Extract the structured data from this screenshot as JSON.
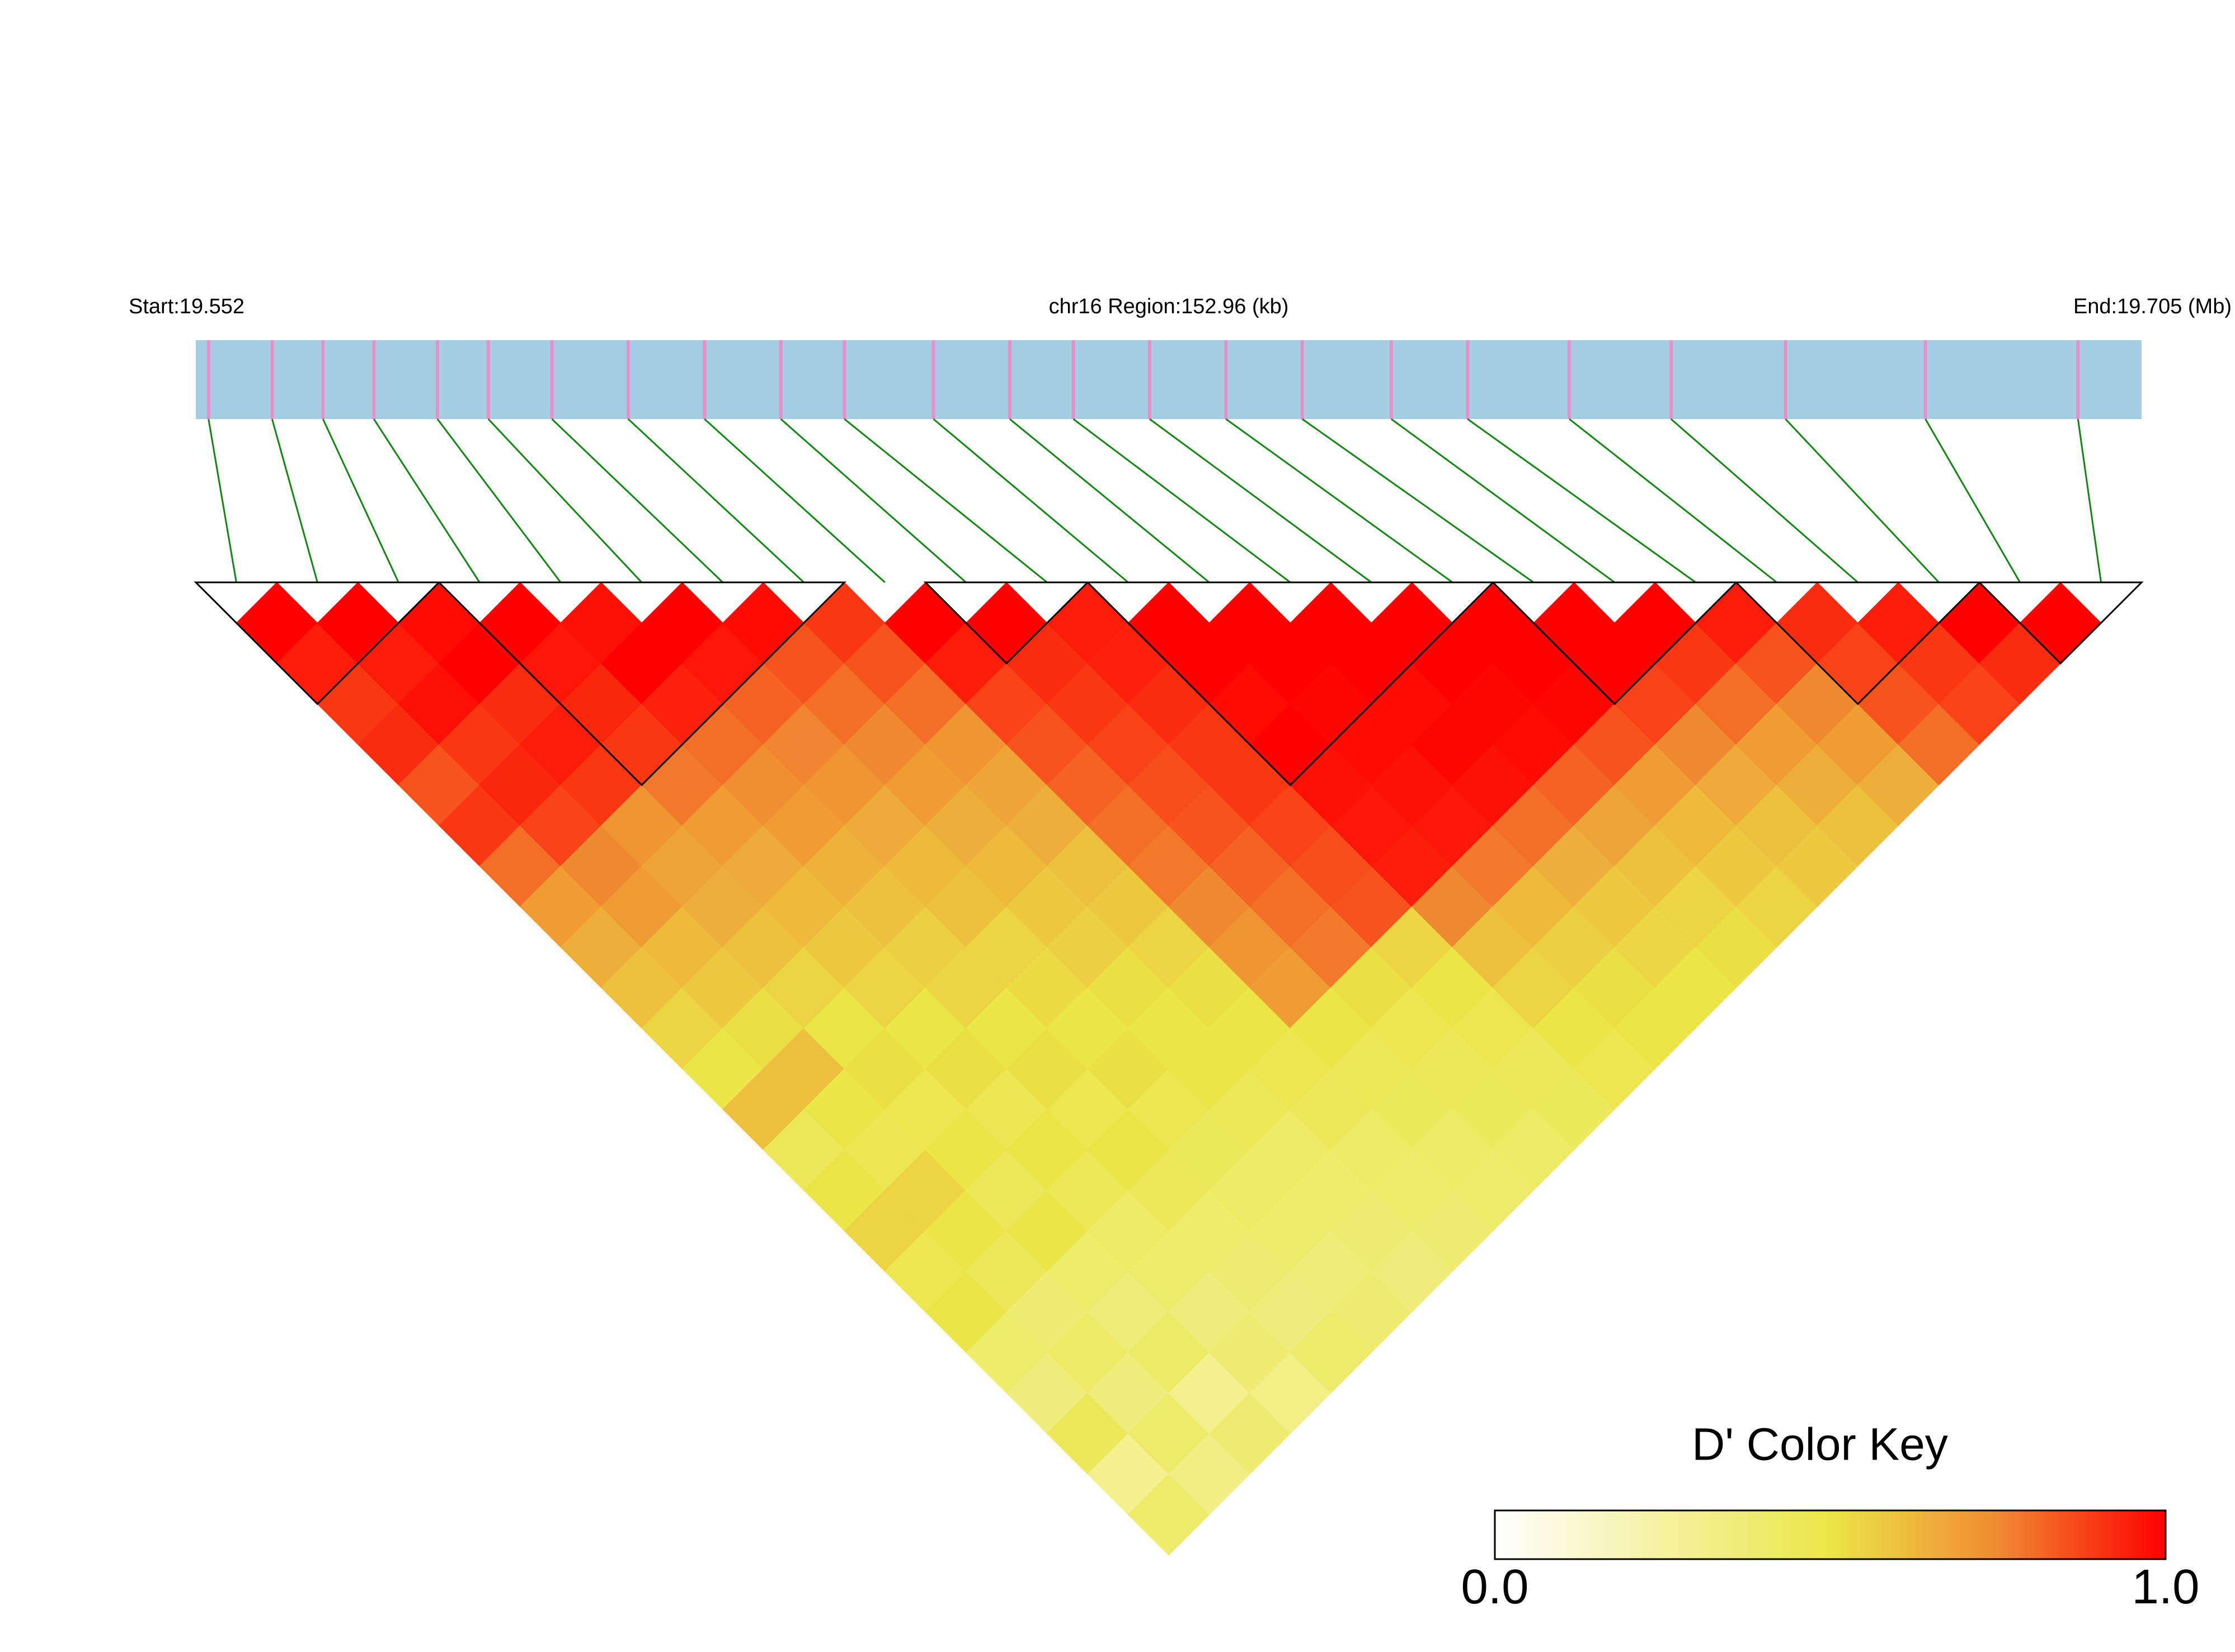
{
  "chart_data": {
    "type": "ld_heatmap",
    "start_label": "Start:19.552",
    "title": "chr16 Region:152.96 (kb)",
    "end_label": "End:19.705 (Mb)",
    "xlim": [
      19.552,
      19.705
    ],
    "positions": [
      19.553,
      19.558,
      19.562,
      19.566,
      19.571,
      19.575,
      19.58,
      19.586,
      19.592,
      19.598,
      19.603,
      19.61,
      19.616,
      19.621,
      19.627,
      19.633,
      19.639,
      19.646,
      19.652,
      19.66,
      19.668,
      19.677,
      19.688,
      19.7
    ],
    "dprime": [
      [
        1,
        0.95,
        0.9,
        0.92,
        0.85,
        0.9,
        0.8,
        0.7,
        0.65,
        0.6,
        0.55,
        0.5,
        0.6,
        0.45,
        0.5,
        0.55,
        0.48,
        0.5,
        0.4,
        0.35,
        0.45,
        0.3,
        0.4
      ],
      [
        1,
        0.95,
        0.97,
        0.9,
        0.93,
        0.88,
        0.75,
        0.7,
        0.62,
        0.58,
        0.52,
        0.6,
        0.5,
        0.47,
        0.55,
        0.5,
        0.45,
        0.38,
        0.42,
        0.35,
        0.4,
        0.33
      ],
      [
        0.98,
        1,
        0.92,
        0.95,
        0.9,
        0.72,
        0.68,
        0.65,
        0.6,
        0.55,
        0.5,
        0.52,
        0.48,
        0.5,
        0.45,
        0.5,
        0.4,
        0.36,
        0.42,
        0.3,
        0.38
      ],
      [
        1,
        0.96,
        0.93,
        0.9,
        0.78,
        0.7,
        0.66,
        0.62,
        0.58,
        0.55,
        0.5,
        0.52,
        0.47,
        0.5,
        0.46,
        0.42,
        0.4,
        0.35,
        0.38,
        0.32
      ],
      [
        0.97,
        1,
        0.94,
        0.8,
        0.74,
        0.7,
        0.64,
        0.6,
        0.56,
        0.55,
        0.5,
        0.52,
        0.48,
        0.5,
        0.45,
        0.4,
        0.38,
        0.35,
        0.4
      ],
      [
        1,
        0.96,
        0.82,
        0.76,
        0.72,
        0.66,
        0.62,
        0.6,
        0.55,
        0.53,
        0.5,
        0.52,
        0.48,
        0.44,
        0.42,
        0.4,
        0.36,
        0.38
      ],
      [
        0.98,
        0.85,
        0.8,
        0.75,
        0.7,
        0.65,
        0.62,
        0.58,
        0.56,
        0.52,
        0.5,
        0.5,
        0.46,
        0.42,
        0.4,
        0.38,
        0.35
      ],
      [
        0.9,
        0.85,
        0.8,
        0.72,
        0.68,
        0.65,
        0.6,
        0.58,
        0.55,
        0.52,
        0.5,
        0.48,
        0.45,
        0.42,
        0.4,
        0.38
      ],
      [
        1,
        0.95,
        0.88,
        0.85,
        0.82,
        0.8,
        0.78,
        0.75,
        0.72,
        0.7,
        0.5,
        0.46,
        0.44,
        0.42,
        0.4
      ],
      [
        1,
        0.92,
        0.9,
        0.88,
        0.86,
        0.85,
        0.82,
        0.8,
        0.78,
        0.52,
        0.48,
        0.45,
        0.44,
        0.42
      ],
      [
        0.95,
        0.94,
        0.92,
        0.9,
        0.9,
        0.88,
        0.86,
        0.85,
        0.55,
        0.5,
        0.48,
        0.45,
        0.44
      ],
      [
        1,
        1,
        0.98,
        1,
        0.97,
        0.96,
        0.95,
        0.75,
        0.6,
        0.55,
        0.5,
        0.48
      ],
      [
        1,
        1,
        0.99,
        0.98,
        0.97,
        0.96,
        0.78,
        0.62,
        0.56,
        0.52,
        0.5
      ],
      [
        1,
        1,
        0.98,
        0.99,
        0.97,
        0.8,
        0.65,
        0.58,
        0.54,
        0.5
      ],
      [
        1,
        1,
        0.99,
        0.98,
        0.82,
        0.68,
        0.6,
        0.55,
        0.52
      ],
      [
        1,
        1,
        0.99,
        0.85,
        0.7,
        0.62,
        0.58,
        0.55
      ],
      [
        1,
        1,
        0.88,
        0.75,
        0.66,
        0.6,
        0.58
      ],
      [
        1,
        0.9,
        0.8,
        0.7,
        0.65,
        0.6
      ],
      [
        0.95,
        0.85,
        0.75,
        0.7,
        0.65
      ],
      [
        0.92,
        0.88,
        0.85,
        0.8
      ],
      [
        0.95,
        0.9,
        0.88
      ],
      [
        1,
        0.92
      ],
      [
        1
      ]
    ],
    "blocks": [
      [
        0,
        2
      ],
      [
        3,
        7
      ],
      [
        9,
        10
      ],
      [
        11,
        15
      ],
      [
        16,
        18
      ],
      [
        19,
        21
      ],
      [
        22,
        23
      ]
    ],
    "bar_color": "#a6cee3",
    "snp_color": "#e68fc9",
    "link_color": "#118811",
    "block_color": "#000000",
    "colorbar_title": "D' Color Key",
    "colorlim": [
      0,
      1
    ],
    "colors": [
      "#ffffff",
      "#f5f2a0",
      "#ebe648",
      "#f08a30",
      "#ff0000"
    ],
    "colorbar_ticks": [
      {
        "value": 0,
        "label": "0.0"
      },
      {
        "value": 1,
        "label": "1.0"
      }
    ]
  }
}
